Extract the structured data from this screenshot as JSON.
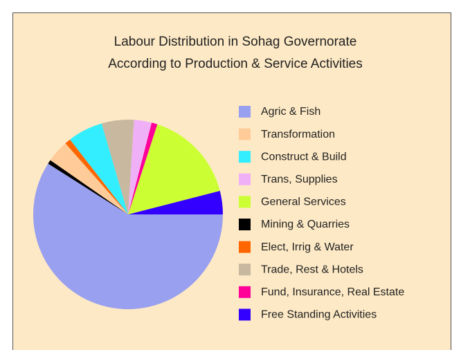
{
  "chart_data": {
    "type": "pie",
    "title": [
      "Labour Distribution in Sohag Governorate",
      "According to Production & Service Activities"
    ],
    "categories": [
      "Agric & Fish",
      "Transformation",
      "Construct & Build",
      "Trans, Supplies",
      "General Services",
      "Mining & Quarries",
      "Elect, Irrig & Water",
      "Trade, Rest & Hotels",
      "Fund, Insurance, Real Estate",
      "Free Standing Activities"
    ],
    "values": [
      59,
      3.8,
      6,
      3,
      16,
      0.7,
      1,
      5.5,
      1,
      4
    ],
    "colors": [
      "#99a0f0",
      "#ffcc99",
      "#33eeff",
      "#f0b0f8",
      "#ccff33",
      "#000000",
      "#ff6600",
      "#c8b8a0",
      "#ff0099",
      "#3300ff"
    ],
    "legend": "right"
  }
}
